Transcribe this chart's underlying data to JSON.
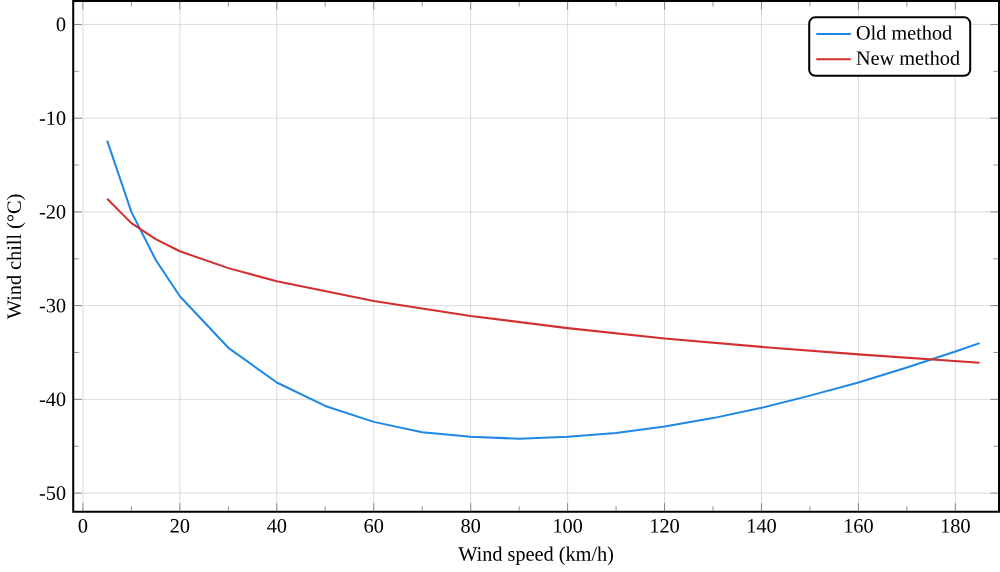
{
  "chart_data": {
    "type": "line",
    "xlabel": "Wind speed (km/h)",
    "ylabel": "Wind chill (°C)",
    "xlim": [
      -2,
      189
    ],
    "ylim": [
      -52,
      2.5
    ],
    "xticks": [
      0,
      20,
      40,
      60,
      80,
      100,
      120,
      140,
      160,
      180
    ],
    "yticks": [
      -50,
      -40,
      -30,
      -20,
      -10,
      0
    ],
    "grid": true,
    "legend": "top right",
    "marker": "none",
    "line_style": "solid",
    "series": [
      {
        "name": "Old method",
        "color": "#1e88e5",
        "x": [
          5,
          10,
          15,
          20,
          30,
          40,
          50,
          60,
          70,
          80,
          90,
          100,
          110,
          120,
          130,
          140,
          150,
          160,
          170,
          180,
          185
        ],
        "values": [
          -12.4,
          -20.0,
          -25.1,
          -29.0,
          -34.5,
          -38.2,
          -40.7,
          -42.4,
          -43.5,
          -44.0,
          -44.2,
          -44.0,
          -43.6,
          -42.9,
          -42.0,
          -40.9,
          -39.6,
          -38.2,
          -36.6,
          -34.9,
          -34.0
        ]
      },
      {
        "name": "New method",
        "color": "#d32f2f",
        "x": [
          5,
          10,
          15,
          20,
          30,
          40,
          60,
          80,
          100,
          120,
          140,
          160,
          185
        ],
        "values": [
          -18.6,
          -21.2,
          -22.9,
          -24.2,
          -26.0,
          -27.4,
          -29.5,
          -31.1,
          -32.4,
          -33.5,
          -34.4,
          -35.2,
          -36.1
        ]
      }
    ]
  }
}
